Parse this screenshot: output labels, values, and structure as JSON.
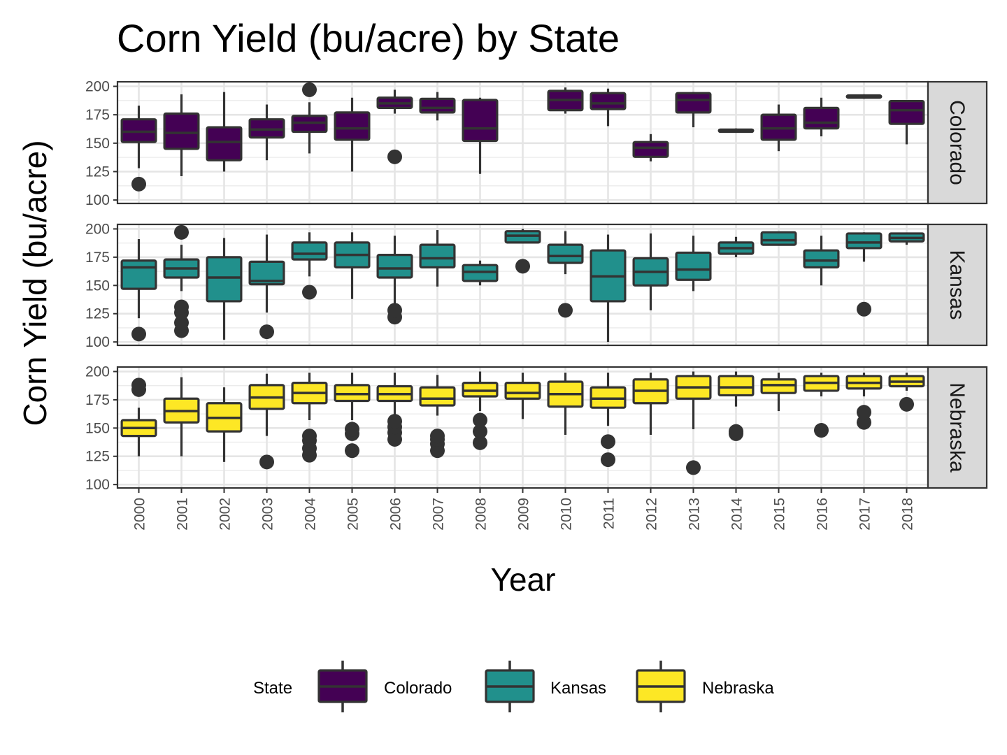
{
  "chart_data": {
    "type": "boxplot",
    "title": "Corn Yield (bu/acre) by State",
    "xlabel": "Year",
    "ylabel": "Corn Yield (bu/acre)",
    "ylim": [
      97,
      204
    ],
    "y_ticks": [
      "100",
      "125",
      "150",
      "175",
      "200"
    ],
    "categories": [
      "2000",
      "2001",
      "2002",
      "2003",
      "2004",
      "2005",
      "2006",
      "2007",
      "2008",
      "2009",
      "2010",
      "2011",
      "2012",
      "2013",
      "2014",
      "2015",
      "2016",
      "2017",
      "2018"
    ],
    "grid": true,
    "legend": {
      "title": "State",
      "position": "bottom"
    },
    "series": [
      {
        "name": "Colorado",
        "color": "#440154",
        "boxes": [
          {
            "year": "2000",
            "lw": 128,
            "q1": 151,
            "median": 160,
            "q3": 171,
            "uw": 183,
            "outliers": [
              114
            ]
          },
          {
            "year": "2001",
            "lw": 121,
            "q1": 145,
            "median": 159,
            "q3": 176,
            "uw": 193,
            "outliers": []
          },
          {
            "year": "2002",
            "lw": 125,
            "q1": 135,
            "median": 151,
            "q3": 164,
            "uw": 195,
            "outliers": []
          },
          {
            "year": "2003",
            "lw": 135,
            "q1": 155,
            "median": 162,
            "q3": 171,
            "uw": 184,
            "outliers": []
          },
          {
            "year": "2004",
            "lw": 141,
            "q1": 160,
            "median": 168,
            "q3": 174,
            "uw": 186,
            "outliers": [
              197
            ]
          },
          {
            "year": "2005",
            "lw": 125,
            "q1": 153,
            "median": 163,
            "q3": 177,
            "uw": 190,
            "outliers": []
          },
          {
            "year": "2006",
            "lw": 176,
            "q1": 181,
            "median": 185,
            "q3": 190,
            "uw": 197,
            "outliers": [
              138
            ]
          },
          {
            "year": "2007",
            "lw": 170,
            "q1": 177,
            "median": 181,
            "q3": 189,
            "uw": 195,
            "outliers": []
          },
          {
            "year": "2008",
            "lw": 123,
            "q1": 152,
            "median": 163,
            "q3": 188,
            "uw": 190,
            "outliers": []
          },
          {
            "year": "2010",
            "lw": 176,
            "q1": 179,
            "median": 188,
            "q3": 196,
            "uw": 199,
            "outliers": []
          },
          {
            "year": "2011",
            "lw": 165,
            "q1": 180,
            "median": 185,
            "q3": 194,
            "uw": 198,
            "outliers": []
          },
          {
            "year": "2012",
            "lw": 134,
            "q1": 138,
            "median": 146,
            "q3": 151,
            "uw": 158,
            "outliers": []
          },
          {
            "year": "2013",
            "lw": 164,
            "q1": 177,
            "median": 188,
            "q3": 194,
            "uw": 195,
            "outliers": []
          },
          {
            "year": "2014",
            "lw": 160,
            "q1": 160,
            "median": 161,
            "q3": 162,
            "uw": 163,
            "outliers": []
          },
          {
            "year": "2015",
            "lw": 143,
            "q1": 153,
            "median": 163,
            "q3": 175,
            "uw": 184,
            "outliers": []
          },
          {
            "year": "2016",
            "lw": 156,
            "q1": 163,
            "median": 168,
            "q3": 181,
            "uw": 190,
            "outliers": []
          },
          {
            "year": "2017",
            "lw": 189,
            "q1": 190,
            "median": 191,
            "q3": 192,
            "uw": 193,
            "outliers": []
          },
          {
            "year": "2018",
            "lw": 149,
            "q1": 167,
            "median": 179,
            "q3": 187,
            "uw": 188,
            "outliers": []
          }
        ]
      },
      {
        "name": "Kansas",
        "color": "#21908C",
        "boxes": [
          {
            "year": "2000",
            "lw": 121,
            "q1": 147,
            "median": 166,
            "q3": 172,
            "uw": 191,
            "outliers": [
              107
            ]
          },
          {
            "year": "2001",
            "lw": 145,
            "q1": 157,
            "median": 165,
            "q3": 173,
            "uw": 186,
            "outliers": [
              110,
              117,
              126,
              131,
              197
            ]
          },
          {
            "year": "2002",
            "lw": 102,
            "q1": 136,
            "median": 157,
            "q3": 175,
            "uw": 192,
            "outliers": []
          },
          {
            "year": "2003",
            "lw": 126,
            "q1": 151,
            "median": 154,
            "q3": 171,
            "uw": 195,
            "outliers": [
              109
            ]
          },
          {
            "year": "2004",
            "lw": 158,
            "q1": 173,
            "median": 178,
            "q3": 188,
            "uw": 197,
            "outliers": [
              144
            ]
          },
          {
            "year": "2005",
            "lw": 138,
            "q1": 166,
            "median": 177,
            "q3": 188,
            "uw": 197,
            "outliers": []
          },
          {
            "year": "2006",
            "lw": 132,
            "q1": 157,
            "median": 165,
            "q3": 177,
            "uw": 194,
            "outliers": [
              122,
              128
            ]
          },
          {
            "year": "2007",
            "lw": 149,
            "q1": 166,
            "median": 174,
            "q3": 186,
            "uw": 199,
            "outliers": []
          },
          {
            "year": "2008",
            "lw": 150,
            "q1": 154,
            "median": 162,
            "q3": 168,
            "uw": 172,
            "outliers": []
          },
          {
            "year": "2009",
            "lw": 188,
            "q1": 188,
            "median": 194,
            "q3": 198,
            "uw": 200,
            "outliers": [
              167
            ]
          },
          {
            "year": "2010",
            "lw": 160,
            "q1": 170,
            "median": 176,
            "q3": 186,
            "uw": 198,
            "outliers": [
              128
            ]
          },
          {
            "year": "2011",
            "lw": 100,
            "q1": 136,
            "median": 158,
            "q3": 181,
            "uw": 195,
            "outliers": []
          },
          {
            "year": "2012",
            "lw": 128,
            "q1": 150,
            "median": 162,
            "q3": 174,
            "uw": 196,
            "outliers": []
          },
          {
            "year": "2013",
            "lw": 145,
            "q1": 155,
            "median": 164,
            "q3": 179,
            "uw": 194,
            "outliers": []
          },
          {
            "year": "2014",
            "lw": 175,
            "q1": 178,
            "median": 183,
            "q3": 188,
            "uw": 193,
            "outliers": []
          },
          {
            "year": "2015",
            "lw": 186,
            "q1": 186,
            "median": 190,
            "q3": 197,
            "uw": 197,
            "outliers": []
          },
          {
            "year": "2016",
            "lw": 150,
            "q1": 166,
            "median": 172,
            "q3": 181,
            "uw": 194,
            "outliers": []
          },
          {
            "year": "2017",
            "lw": 171,
            "q1": 183,
            "median": 188,
            "q3": 196,
            "uw": 197,
            "outliers": [
              129
            ]
          },
          {
            "year": "2018",
            "lw": 186,
            "q1": 189,
            "median": 192,
            "q3": 196,
            "uw": 196,
            "outliers": []
          }
        ]
      },
      {
        "name": "Nebraska",
        "color": "#FDE725",
        "boxes": [
          {
            "year": "2000",
            "lw": 125,
            "q1": 143,
            "median": 150,
            "q3": 157,
            "uw": 168,
            "outliers": [
              184,
              188
            ]
          },
          {
            "year": "2001",
            "lw": 125,
            "q1": 155,
            "median": 165,
            "q3": 176,
            "uw": 195,
            "outliers": []
          },
          {
            "year": "2002",
            "lw": 120,
            "q1": 147,
            "median": 159,
            "q3": 172,
            "uw": 186,
            "outliers": []
          },
          {
            "year": "2003",
            "lw": 143,
            "q1": 167,
            "median": 177,
            "q3": 188,
            "uw": 198,
            "outliers": [
              120
            ]
          },
          {
            "year": "2004",
            "lw": 157,
            "q1": 172,
            "median": 181,
            "q3": 190,
            "uw": 199,
            "outliers": [
              126,
              132,
              139,
              143
            ]
          },
          {
            "year": "2005",
            "lw": 157,
            "q1": 174,
            "median": 180,
            "q3": 188,
            "uw": 199,
            "outliers": [
              130,
              145,
              149
            ]
          },
          {
            "year": "2006",
            "lw": 160,
            "q1": 174,
            "median": 180,
            "q3": 187,
            "uw": 199,
            "outliers": [
              140,
              146,
              151,
              156
            ]
          },
          {
            "year": "2007",
            "lw": 161,
            "q1": 170,
            "median": 176,
            "q3": 186,
            "uw": 197,
            "outliers": [
              130,
              136,
              140,
              143
            ]
          },
          {
            "year": "2008",
            "lw": 165,
            "q1": 178,
            "median": 183,
            "q3": 190,
            "uw": 200,
            "outliers": [
              137,
              147,
              157
            ]
          },
          {
            "year": "2009",
            "lw": 158,
            "q1": 176,
            "median": 181,
            "q3": 190,
            "uw": 199,
            "outliers": []
          },
          {
            "year": "2010",
            "lw": 144,
            "q1": 169,
            "median": 180,
            "q3": 191,
            "uw": 199,
            "outliers": []
          },
          {
            "year": "2011",
            "lw": 152,
            "q1": 168,
            "median": 176,
            "q3": 186,
            "uw": 199,
            "outliers": [
              122,
              138
            ]
          },
          {
            "year": "2012",
            "lw": 144,
            "q1": 172,
            "median": 183,
            "q3": 193,
            "uw": 199,
            "outliers": []
          },
          {
            "year": "2013",
            "lw": 149,
            "q1": 176,
            "median": 186,
            "q3": 196,
            "uw": 200,
            "outliers": [
              115
            ]
          },
          {
            "year": "2014",
            "lw": 169,
            "q1": 179,
            "median": 186,
            "q3": 196,
            "uw": 200,
            "outliers": [
              145,
              147
            ]
          },
          {
            "year": "2015",
            "lw": 165,
            "q1": 181,
            "median": 188,
            "q3": 193,
            "uw": 199,
            "outliers": []
          },
          {
            "year": "2016",
            "lw": 178,
            "q1": 183,
            "median": 190,
            "q3": 196,
            "uw": 199,
            "outliers": [
              148
            ]
          },
          {
            "year": "2017",
            "lw": 178,
            "q1": 185,
            "median": 190,
            "q3": 196,
            "uw": 199,
            "outliers": [
              155,
              164
            ]
          },
          {
            "year": "2018",
            "lw": 183,
            "q1": 187,
            "median": 191,
            "q3": 196,
            "uw": 199,
            "outliers": [
              171
            ]
          }
        ]
      }
    ]
  }
}
